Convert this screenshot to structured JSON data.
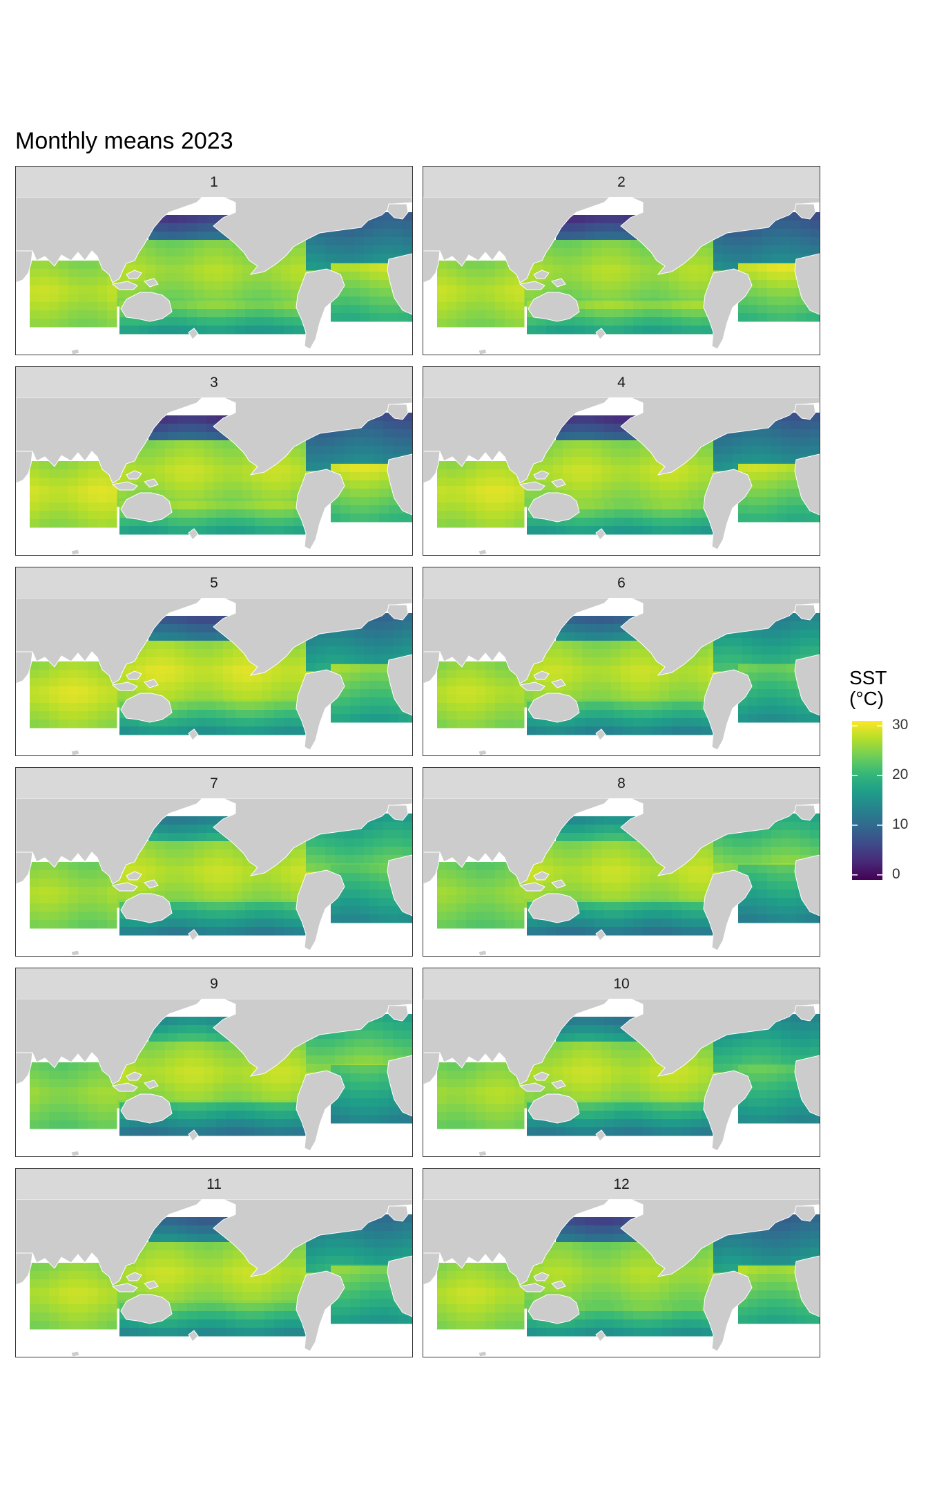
{
  "title": "Monthly means 2023",
  "legend": {
    "title_line1": "SST",
    "title_line2": "(°C)",
    "ticks": [
      0,
      10,
      20,
      30
    ],
    "range": [
      -1,
      31
    ],
    "colors": [
      "#440154",
      "#482878",
      "#3e4a89",
      "#31688e",
      "#26828e",
      "#1f9e89",
      "#35b779",
      "#6ece58",
      "#b5de2b",
      "#fde725"
    ]
  },
  "chart_data": {
    "type": "heatmap",
    "title": "Monthly means 2023",
    "facet_variable": "month",
    "panels": [
      "1",
      "2",
      "3",
      "4",
      "5",
      "6",
      "7",
      "8",
      "9",
      "10",
      "11",
      "12"
    ],
    "value_label": "SST (°C)",
    "colorbar_ticks": [
      0,
      10,
      20,
      30
    ],
    "colorscale": "viridis",
    "approx_values_by_region": {
      "1": {
        "north_pacific": 5,
        "tropical_pacific": 27,
        "south_pacific": 20,
        "north_atlantic": 8,
        "south_atlantic": 23,
        "indian": 28
      },
      "2": {
        "north_pacific": 4,
        "tropical_pacific": 27,
        "south_pacific": 21,
        "north_atlantic": 7,
        "south_atlantic": 24,
        "indian": 28
      },
      "3": {
        "north_pacific": 4,
        "tropical_pacific": 28,
        "south_pacific": 21,
        "north_atlantic": 7,
        "south_atlantic": 24,
        "indian": 29
      },
      "4": {
        "north_pacific": 4,
        "tropical_pacific": 28,
        "south_pacific": 20,
        "north_atlantic": 8,
        "south_atlantic": 23,
        "indian": 29
      },
      "5": {
        "north_pacific": 7,
        "tropical_pacific": 29,
        "south_pacific": 19,
        "north_atlantic": 10,
        "south_atlantic": 21,
        "indian": 29
      },
      "6": {
        "north_pacific": 9,
        "tropical_pacific": 28,
        "south_pacific": 17,
        "north_atlantic": 13,
        "south_atlantic": 19,
        "indian": 28
      },
      "7": {
        "north_pacific": 13,
        "tropical_pacific": 28,
        "south_pacific": 16,
        "north_atlantic": 16,
        "south_atlantic": 18,
        "indian": 27
      },
      "8": {
        "north_pacific": 15,
        "tropical_pacific": 28,
        "south_pacific": 15,
        "north_atlantic": 18,
        "south_atlantic": 17,
        "indian": 26
      },
      "9": {
        "north_pacific": 15,
        "tropical_pacific": 28,
        "south_pacific": 15,
        "north_atlantic": 18,
        "south_atlantic": 17,
        "indian": 26
      },
      "10": {
        "north_pacific": 12,
        "tropical_pacific": 28,
        "south_pacific": 16,
        "north_atlantic": 14,
        "south_atlantic": 18,
        "indian": 27
      },
      "11": {
        "north_pacific": 9,
        "tropical_pacific": 28,
        "south_pacific": 18,
        "north_atlantic": 11,
        "south_atlantic": 20,
        "indian": 28
      },
      "12": {
        "north_pacific": 6,
        "tropical_pacific": 27,
        "south_pacific": 19,
        "north_atlantic": 9,
        "south_atlantic": 22,
        "indian": 28
      }
    }
  }
}
